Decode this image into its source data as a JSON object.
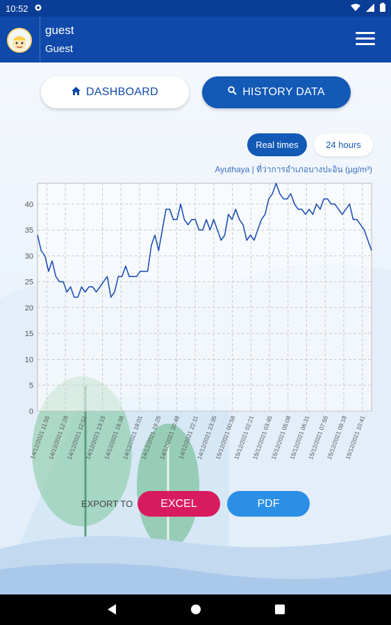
{
  "status_bar": {
    "time": "10:52"
  },
  "header": {
    "user_name": "guest",
    "user_role": "Guest"
  },
  "tabs": {
    "dashboard": "DASHBOARD",
    "history": "HISTORY DATA"
  },
  "range": {
    "realtime": "Real times",
    "hours24": "24 hours"
  },
  "station": "Ayuthaya | ที่ว่าการอำเภอบางปะอิน (µg/m³)",
  "export": {
    "label": "EXPORT TO",
    "excel": "EXCEL",
    "pdf": "PDF"
  },
  "colors": {
    "primary": "#0f49a9",
    "accent_blue": "#1359b6",
    "excel": "#d81b5f",
    "pdf": "#2b8fe6",
    "line": "#1f4fb3"
  },
  "chart_data": {
    "type": "line",
    "title": "",
    "xlabel": "",
    "ylabel": "",
    "ylim": [
      0,
      44
    ],
    "yticks": [
      0,
      5,
      10,
      15,
      20,
      25,
      30,
      35,
      40
    ],
    "grid": true,
    "x_tick_labels": [
      "14/12/2021 11:55",
      "14/12/2021 12:28",
      "14/12/2021 12:51",
      "14/12/2021 13:15",
      "14/12/2021 16:38",
      "14/12/2021 18:01",
      "14/12/2021 19:25",
      "14/12/2021 20:48",
      "14/12/2021 22:11",
      "14/12/2021 23:35",
      "15/12/2021 00:58",
      "15/12/2021 02:21",
      "15/12/2021 03:45",
      "15/12/2021 05:08",
      "15/12/2021 06:31",
      "15/12/2021 07:55",
      "15/12/2021 09:18",
      "15/12/2021 10:41"
    ],
    "series": [
      {
        "values": [
          34,
          31,
          30,
          27,
          29,
          26,
          25,
          25,
          23,
          24,
          22,
          22,
          24,
          23,
          24,
          24,
          23,
          24,
          25,
          26,
          22,
          23,
          26,
          26,
          28,
          26,
          26,
          26,
          27,
          27,
          27,
          32,
          34,
          31,
          35,
          39,
          39,
          37,
          37,
          40,
          37,
          36,
          37,
          37,
          35,
          35,
          37,
          35,
          37,
          35,
          33,
          34,
          38,
          37,
          39,
          37,
          36,
          33,
          34,
          33,
          35,
          37,
          38,
          41,
          42,
          44,
          42,
          41,
          41,
          42,
          40,
          39,
          39,
          38,
          39,
          38,
          40,
          39,
          41,
          41,
          40,
          40,
          39,
          38,
          39,
          40,
          37,
          37,
          36,
          35,
          33,
          31
        ]
      }
    ]
  }
}
